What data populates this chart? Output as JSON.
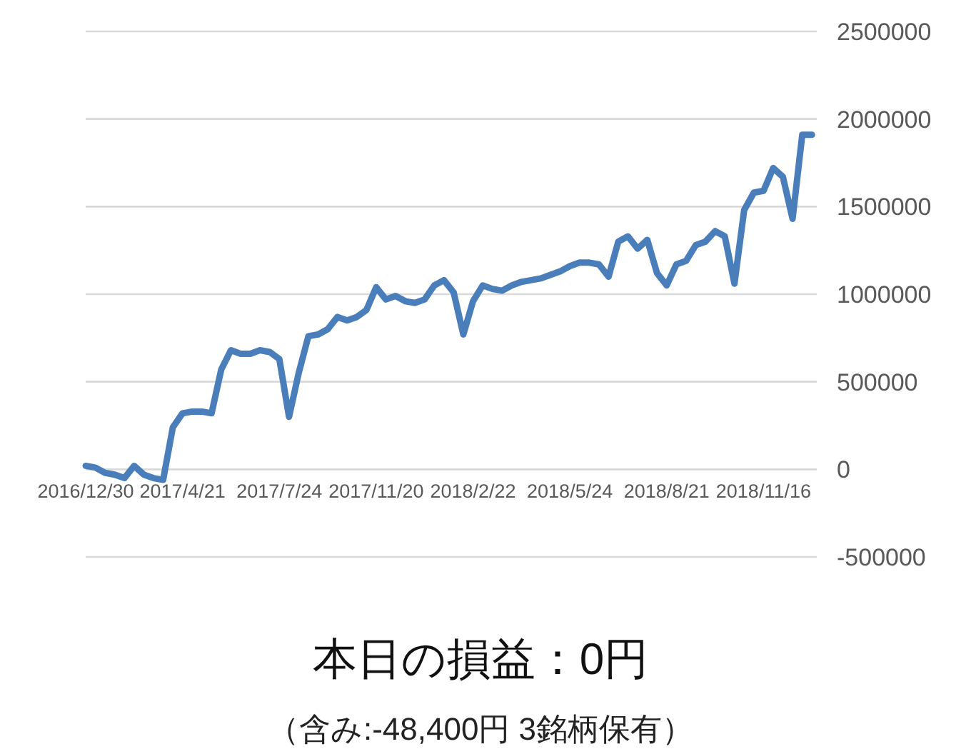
{
  "chart_data": {
    "type": "line",
    "title": "本日の損益：0円",
    "subtitle": "（含み:-48,400円  3銘柄保有）",
    "categories": [
      "2016/12/30",
      null,
      null,
      null,
      null,
      null,
      null,
      null,
      null,
      null,
      "2017/4/21",
      null,
      null,
      null,
      null,
      null,
      null,
      null,
      null,
      null,
      "2017/7/24",
      null,
      null,
      null,
      null,
      null,
      null,
      null,
      null,
      null,
      "2017/11/20",
      null,
      null,
      null,
      null,
      null,
      null,
      null,
      null,
      null,
      "2018/2/22",
      null,
      null,
      null,
      null,
      null,
      null,
      null,
      null,
      null,
      "2018/5/24",
      null,
      null,
      null,
      null,
      null,
      null,
      null,
      null,
      null,
      "2018/8/21",
      null,
      null,
      null,
      null,
      null,
      null,
      null,
      null,
      null,
      "2018/11/16",
      null,
      null,
      null,
      null,
      null
    ],
    "series": [
      {
        "color": "#4a7ebb",
        "values": [
          20000,
          10000,
          -20000,
          -30000,
          -50000,
          20000,
          -30000,
          -50000,
          -60000,
          240000,
          320000,
          330000,
          330000,
          320000,
          570000,
          680000,
          660000,
          660000,
          680000,
          670000,
          630000,
          300000,
          550000,
          760000,
          770000,
          800000,
          870000,
          850000,
          870000,
          910000,
          1040000,
          970000,
          990000,
          960000,
          950000,
          970000,
          1050000,
          1080000,
          1010000,
          770000,
          960000,
          1050000,
          1030000,
          1020000,
          1050000,
          1070000,
          1080000,
          1090000,
          1110000,
          1130000,
          1160000,
          1180000,
          1180000,
          1170000,
          1100000,
          1300000,
          1330000,
          1260000,
          1310000,
          1120000,
          1050000,
          1170000,
          1190000,
          1280000,
          1300000,
          1360000,
          1330000,
          1060000,
          1480000,
          1580000,
          1590000,
          1720000,
          1670000,
          1430000,
          1910000,
          1910000
        ]
      }
    ],
    "ylim": [
      -500000,
      2500000
    ],
    "yticks": [
      -500000,
      0,
      500000,
      1000000,
      1500000,
      2000000,
      2500000
    ],
    "grid": "y",
    "marker": "none",
    "line_style": "solid"
  }
}
